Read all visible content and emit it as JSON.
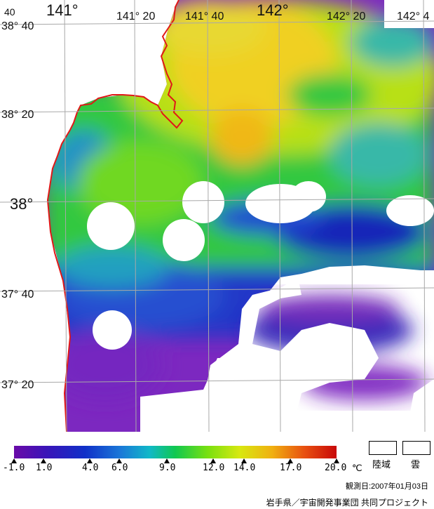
{
  "map": {
    "lon_labels": [
      "141°",
      "141° 20",
      "141° 40",
      "142°",
      "142° 20",
      "142° 4"
    ],
    "lat_labels": [
      "38° 40",
      "38° 20",
      "38°",
      "37° 40",
      "37° 20"
    ],
    "corner_label": "40",
    "colors": {
      "land": "#ffffff",
      "cloud": "#ffffff",
      "coast": "#e01818",
      "grid": "#a8a8a8",
      "sst_warm": "#f0c818",
      "sst_mid": "#a0e010",
      "sst_cool": "#20c838",
      "sst_cold": "#2040c8",
      "sst_coldest": "#7014b0"
    }
  },
  "legend": {
    "ticks": [
      "-1.0",
      "1.0",
      "4.0",
      "6.0",
      "9.0",
      "12.0",
      "14.0",
      "17.0",
      "20.0"
    ],
    "unit": "℃",
    "land_label": "陸域",
    "cloud_label": "雲"
  },
  "observation_date": "観測日:2007年01月03日",
  "credit": "岩手県／宇宙開発事業団 共同プロジェクト"
}
